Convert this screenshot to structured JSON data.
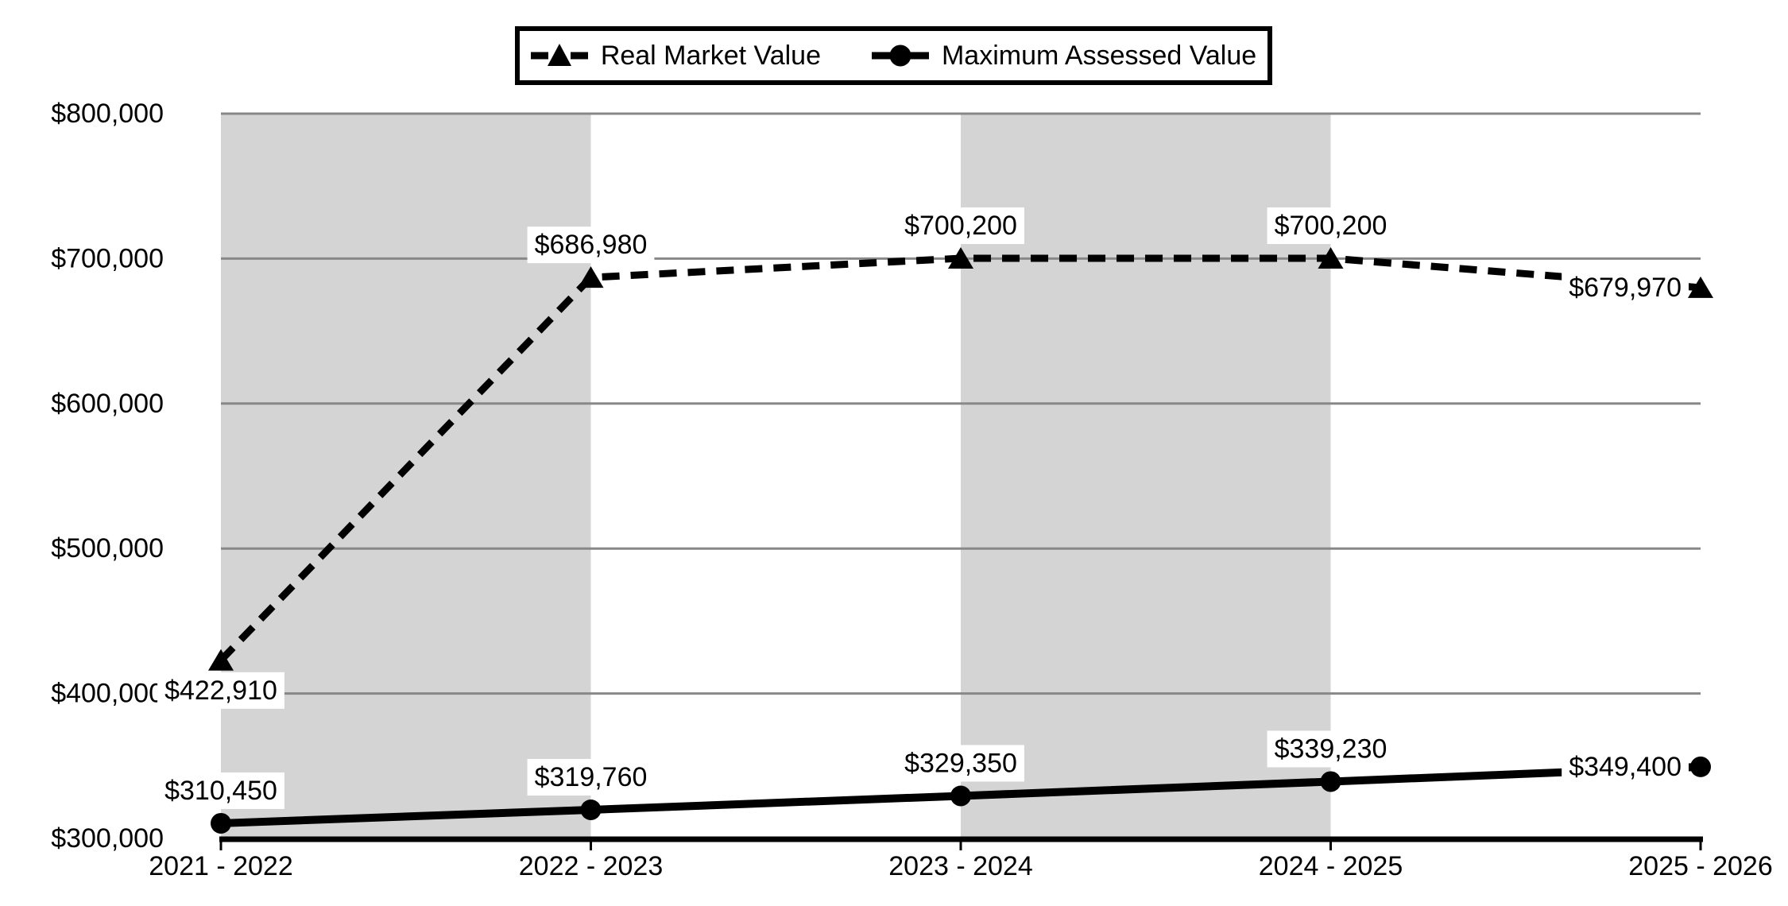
{
  "figure": {
    "background_color": "#ffffff",
    "band_color": "#d4d4d4",
    "gridline_color": "#888888",
    "axis_color": "#000000",
    "series_color": "#000000",
    "data_label_background": "#ffffff",
    "text_color": "#000000"
  },
  "legend": {
    "items": [
      {
        "label": "Real Market Value",
        "marker_icon": "dashed-line-triangle"
      },
      {
        "label": "Maximum Assessed Value",
        "marker_icon": "solid-line-circle"
      }
    ]
  },
  "chart_data": {
    "type": "line",
    "title": "",
    "xlabel": "",
    "ylabel": "",
    "categories": [
      "2021 - 2022",
      "2022 - 2023",
      "2023 - 2024",
      "2024 - 2025",
      "2025 - 2026"
    ],
    "series": [
      {
        "name": "Real Market Value",
        "line_style": "dashed",
        "marker": "triangle",
        "values": [
          422910,
          686980,
          700200,
          700200,
          679970
        ],
        "data_labels": [
          "$422,910",
          "$686,980",
          "$700,200",
          "$700,200",
          "$679,970"
        ],
        "label_placement": [
          "below",
          "above",
          "above",
          "above",
          "left"
        ]
      },
      {
        "name": "Maximum Assessed Value",
        "line_style": "solid",
        "marker": "circle",
        "values": [
          310450,
          319760,
          329350,
          339230,
          349400
        ],
        "data_labels": [
          "$310,450",
          "$319,760",
          "$329,350",
          "$339,230",
          "$349,400"
        ],
        "label_placement": [
          "above",
          "above",
          "above",
          "above",
          "left"
        ]
      }
    ],
    "yaxis": {
      "min": 300000,
      "max": 800000,
      "step": 100000,
      "tick_labels": [
        "$300,000",
        "$400,000",
        "$500,000",
        "$600,000",
        "$700,000",
        "$800,000"
      ]
    },
    "grid": "horizontal",
    "legend_position": "top-center",
    "shaded_band_pairs": [
      [
        0,
        1
      ],
      [
        2,
        3
      ]
    ]
  }
}
